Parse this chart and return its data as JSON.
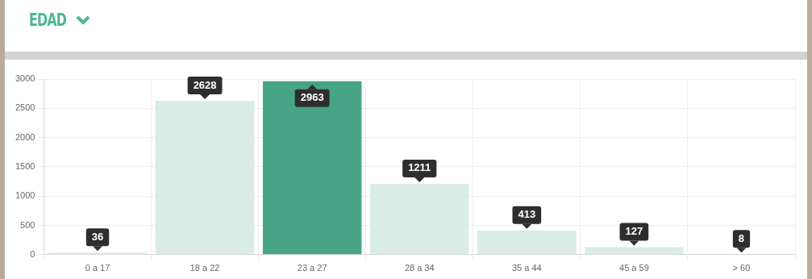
{
  "chart_data": {
    "type": "bar",
    "title": "EDAD",
    "categories": [
      "0 a 17",
      "18 a 22",
      "23 a 27",
      "28 a 34",
      "35 a 44",
      "45 a 59",
      "> 60"
    ],
    "values": [
      36,
      2628,
      2963,
      1211,
      413,
      127,
      8
    ],
    "colors": [
      "#d9ede6",
      "#d9ede6",
      "#48a487",
      "#d9ede6",
      "#d9ede6",
      "#d9ede6",
      "#d9ede6"
    ],
    "ylim": [
      0,
      3000
    ],
    "yticks": [
      0,
      500,
      1000,
      1500,
      2000,
      2500,
      3000
    ],
    "grid": true,
    "data_labels": true,
    "legend": false
  }
}
